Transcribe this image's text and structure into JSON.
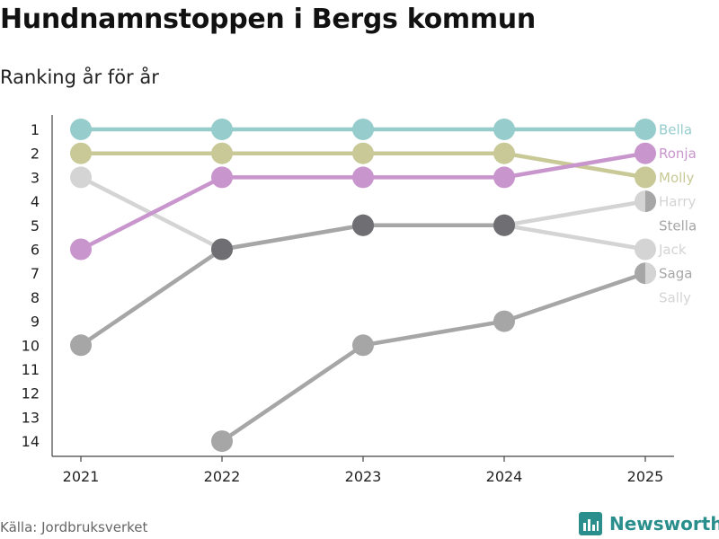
{
  "header": {
    "title": "Hundnamnstoppen i Bergs kommun",
    "subtitle": "Ranking år för år"
  },
  "footer": {
    "source": "Källa: Jordbruksverket",
    "brand": "Newsworthy"
  },
  "chart_data": {
    "type": "line",
    "subtype": "bump",
    "title": "Hundnamnstoppen i Bergs kommun",
    "subtitle": "Ranking år för år",
    "x": [
      "2021",
      "2022",
      "2023",
      "2024",
      "2025"
    ],
    "y_ticks": [
      "1",
      "2",
      "3",
      "4",
      "5",
      "6",
      "7",
      "8",
      "9",
      "10",
      "11",
      "12",
      "13",
      "14"
    ],
    "ylim": [
      1,
      14
    ],
    "y_inverted": true,
    "series": [
      {
        "name": "Bella",
        "values": [
          1,
          1,
          1,
          1,
          1
        ],
        "color": "#96cdcc",
        "label_color": "#96cdcc",
        "marker": "full"
      },
      {
        "name": "Molly",
        "values": [
          2,
          2,
          2,
          2,
          3
        ],
        "color": "#c8c996",
        "label_color": "#c8c996",
        "marker": "full"
      },
      {
        "name": "Ronja",
        "values": [
          6,
          3,
          3,
          3,
          2
        ],
        "color": "#c995cd",
        "label_color": "#c995cd",
        "marker": "full"
      },
      {
        "name": "Jack",
        "values": [
          3,
          6,
          5,
          5,
          6
        ],
        "color": "#d4d4d4",
        "label_color": "#d4d4d4",
        "marker": "full"
      },
      {
        "name": "Harry",
        "values": [
          null,
          6,
          5,
          5,
          4
        ],
        "color": "#d4d4d4",
        "label_color": "#d4d4d4",
        "marker": "half",
        "marker_color2": "#a6a6a6"
      },
      {
        "name": "Stella",
        "values": [
          10,
          6,
          5,
          5,
          null
        ],
        "color": "#a6a6a6",
        "label_color": "#a6a6a6",
        "marker": "full",
        "label_at": 5
      },
      {
        "name": "Saga",
        "values": [
          null,
          14,
          10,
          9,
          7
        ],
        "color": "#a6a6a6",
        "label_color": "#a6a6a6",
        "marker": "half",
        "marker_color2": "#d4d4d4"
      },
      {
        "name": "Sally",
        "values": [
          null,
          null,
          null,
          null,
          null
        ],
        "color": "#d4d4d4",
        "label_color": "#d4d4d4",
        "marker": "none",
        "label_at": 8
      }
    ],
    "overlap_markers": [
      {
        "x": "2022",
        "value": 6,
        "color": "#6e6e73"
      },
      {
        "x": "2023",
        "value": 5,
        "color": "#6e6e73"
      },
      {
        "x": "2024",
        "value": 5,
        "color": "#6e6e73"
      }
    ],
    "grid": false
  }
}
